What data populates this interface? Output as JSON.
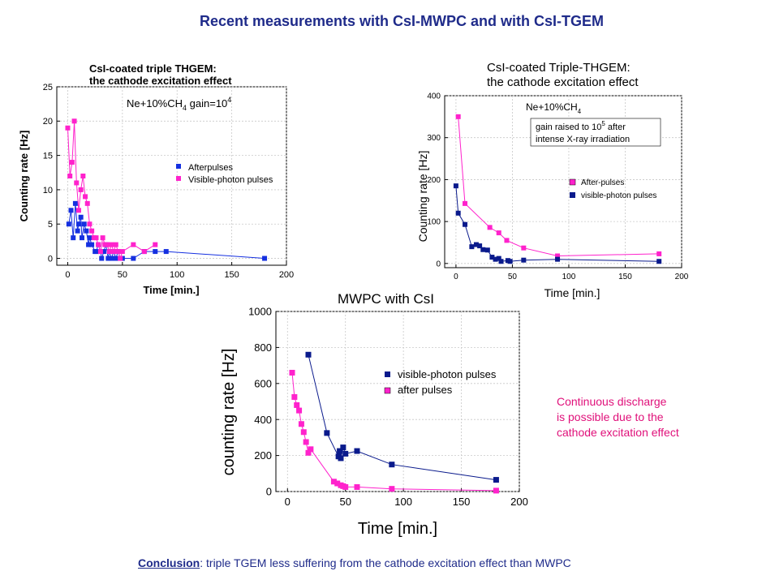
{
  "slide": {
    "title": "Recent measurements with CsI-MWPC and with CsI-TGEM",
    "note_lines": [
      "Continuous discharge",
      "is possible due to the",
      "cathode excitation effect"
    ],
    "conclusion_label": "Conclusion",
    "conclusion_text": ": triple TGEM less suffering from the cathode excitation effect than MWPC"
  },
  "colors": {
    "title": "#1f2b8a",
    "note": "#e0107a",
    "navy": "#0a1a8c",
    "blue": "#1530e0",
    "magenta": "#ff22cc"
  },
  "chart_data": [
    {
      "type": "scatter",
      "title": "CsI-coated triple THGEM:",
      "subtitle": "the cathode excitation effect",
      "annotation": "Ne+10%CH4    gain=10^4",
      "xlabel": "Time [min.]",
      "ylabel": "Counting rate [Hz]",
      "xlim": [
        -10,
        200
      ],
      "ylim": [
        -1,
        25
      ],
      "xticks": [
        0,
        50,
        100,
        150,
        200
      ],
      "yticks": [
        0,
        5,
        10,
        15,
        20,
        25
      ],
      "grid": true,
      "legend": "right",
      "series": [
        {
          "name": "Afterpulses",
          "color": "#1530e0",
          "x": [
            1,
            3,
            5,
            7,
            9,
            10,
            12,
            13,
            15,
            17,
            19,
            20,
            22,
            25,
            26,
            28,
            30,
            31,
            33,
            35,
            37,
            38,
            40,
            42,
            44,
            46,
            48,
            50,
            60,
            70,
            80,
            90,
            180
          ],
          "y": [
            5,
            7,
            3,
            8,
            4,
            5,
            6,
            3,
            5,
            4,
            2,
            3,
            2,
            1,
            1,
            2,
            1,
            0,
            1,
            2,
            0,
            1,
            0,
            1,
            0,
            1,
            0,
            0,
            0,
            1,
            1,
            1,
            0
          ]
        },
        {
          "name": "Visible-photon pulses",
          "color": "#ff22cc",
          "x": [
            0,
            2,
            4,
            6,
            8,
            10,
            12,
            14,
            16,
            18,
            20,
            22,
            24,
            26,
            28,
            30,
            32,
            34,
            36,
            38,
            40,
            42,
            44,
            46,
            48,
            50,
            60,
            70,
            80
          ],
          "y": [
            19,
            12,
            14,
            20,
            11,
            7,
            10,
            12,
            9,
            8,
            5,
            4,
            3,
            3,
            2,
            1,
            3,
            2,
            2,
            1,
            2,
            1,
            2,
            1,
            0,
            1,
            2,
            1,
            2
          ]
        }
      ]
    },
    {
      "type": "scatter",
      "title": "CsI-coated Triple-THGEM:",
      "subtitle": "the cathode excitation effect",
      "annotation_1": "Ne+10%CH4",
      "annotation_2": "gain raised to 10^5 after",
      "annotation_3": "intense X-ray irradiation",
      "xlabel": "Time [min.]",
      "ylabel": "Counting rate [Hz]",
      "xlim": [
        -10,
        200
      ],
      "ylim": [
        -10,
        400
      ],
      "xticks": [
        0,
        50,
        100,
        150,
        200
      ],
      "yticks": [
        0,
        100,
        200,
        300,
        400
      ],
      "grid": true,
      "legend": "right",
      "series": [
        {
          "name": "After-pulses",
          "color": "#ff22cc",
          "x": [
            2,
            8,
            30,
            38,
            45,
            60,
            90,
            180
          ],
          "y": [
            350,
            143,
            86,
            73,
            55,
            37,
            18,
            23
          ]
        },
        {
          "name": "visible-photon pulses",
          "color": "#0a1a8c",
          "x": [
            0,
            2,
            8,
            14,
            18,
            21,
            24,
            28,
            32,
            35,
            38,
            40,
            46,
            48,
            60,
            90,
            180
          ],
          "y": [
            185,
            120,
            93,
            40,
            45,
            42,
            33,
            32,
            15,
            10,
            12,
            5,
            7,
            5,
            8,
            10,
            5
          ]
        }
      ]
    },
    {
      "type": "scatter",
      "title": "MWPC with CsI",
      "xlabel": "Time [min.]",
      "ylabel": "counting rate [Hz]",
      "xlim": [
        -10,
        200
      ],
      "ylim": [
        0,
        1000
      ],
      "xticks": [
        0,
        50,
        100,
        150,
        200
      ],
      "yticks": [
        0,
        200,
        400,
        600,
        800,
        1000
      ],
      "grid": true,
      "legend": "right",
      "series": [
        {
          "name": "visible-photon pulses",
          "color": "#0a1a8c",
          "x": [
            18,
            34,
            44,
            45,
            46,
            48,
            50,
            60,
            90,
            180
          ],
          "y": [
            760,
            325,
            195,
            225,
            185,
            245,
            210,
            225,
            150,
            65
          ]
        },
        {
          "name": "after pulses",
          "color": "#ff22cc",
          "x": [
            4,
            6,
            8,
            10,
            12,
            14,
            16,
            18,
            20,
            40,
            43,
            46,
            48,
            50,
            60,
            90,
            180
          ],
          "y": [
            660,
            525,
            480,
            450,
            375,
            330,
            275,
            215,
            235,
            55,
            45,
            35,
            30,
            25,
            25,
            15,
            5
          ]
        }
      ]
    }
  ]
}
